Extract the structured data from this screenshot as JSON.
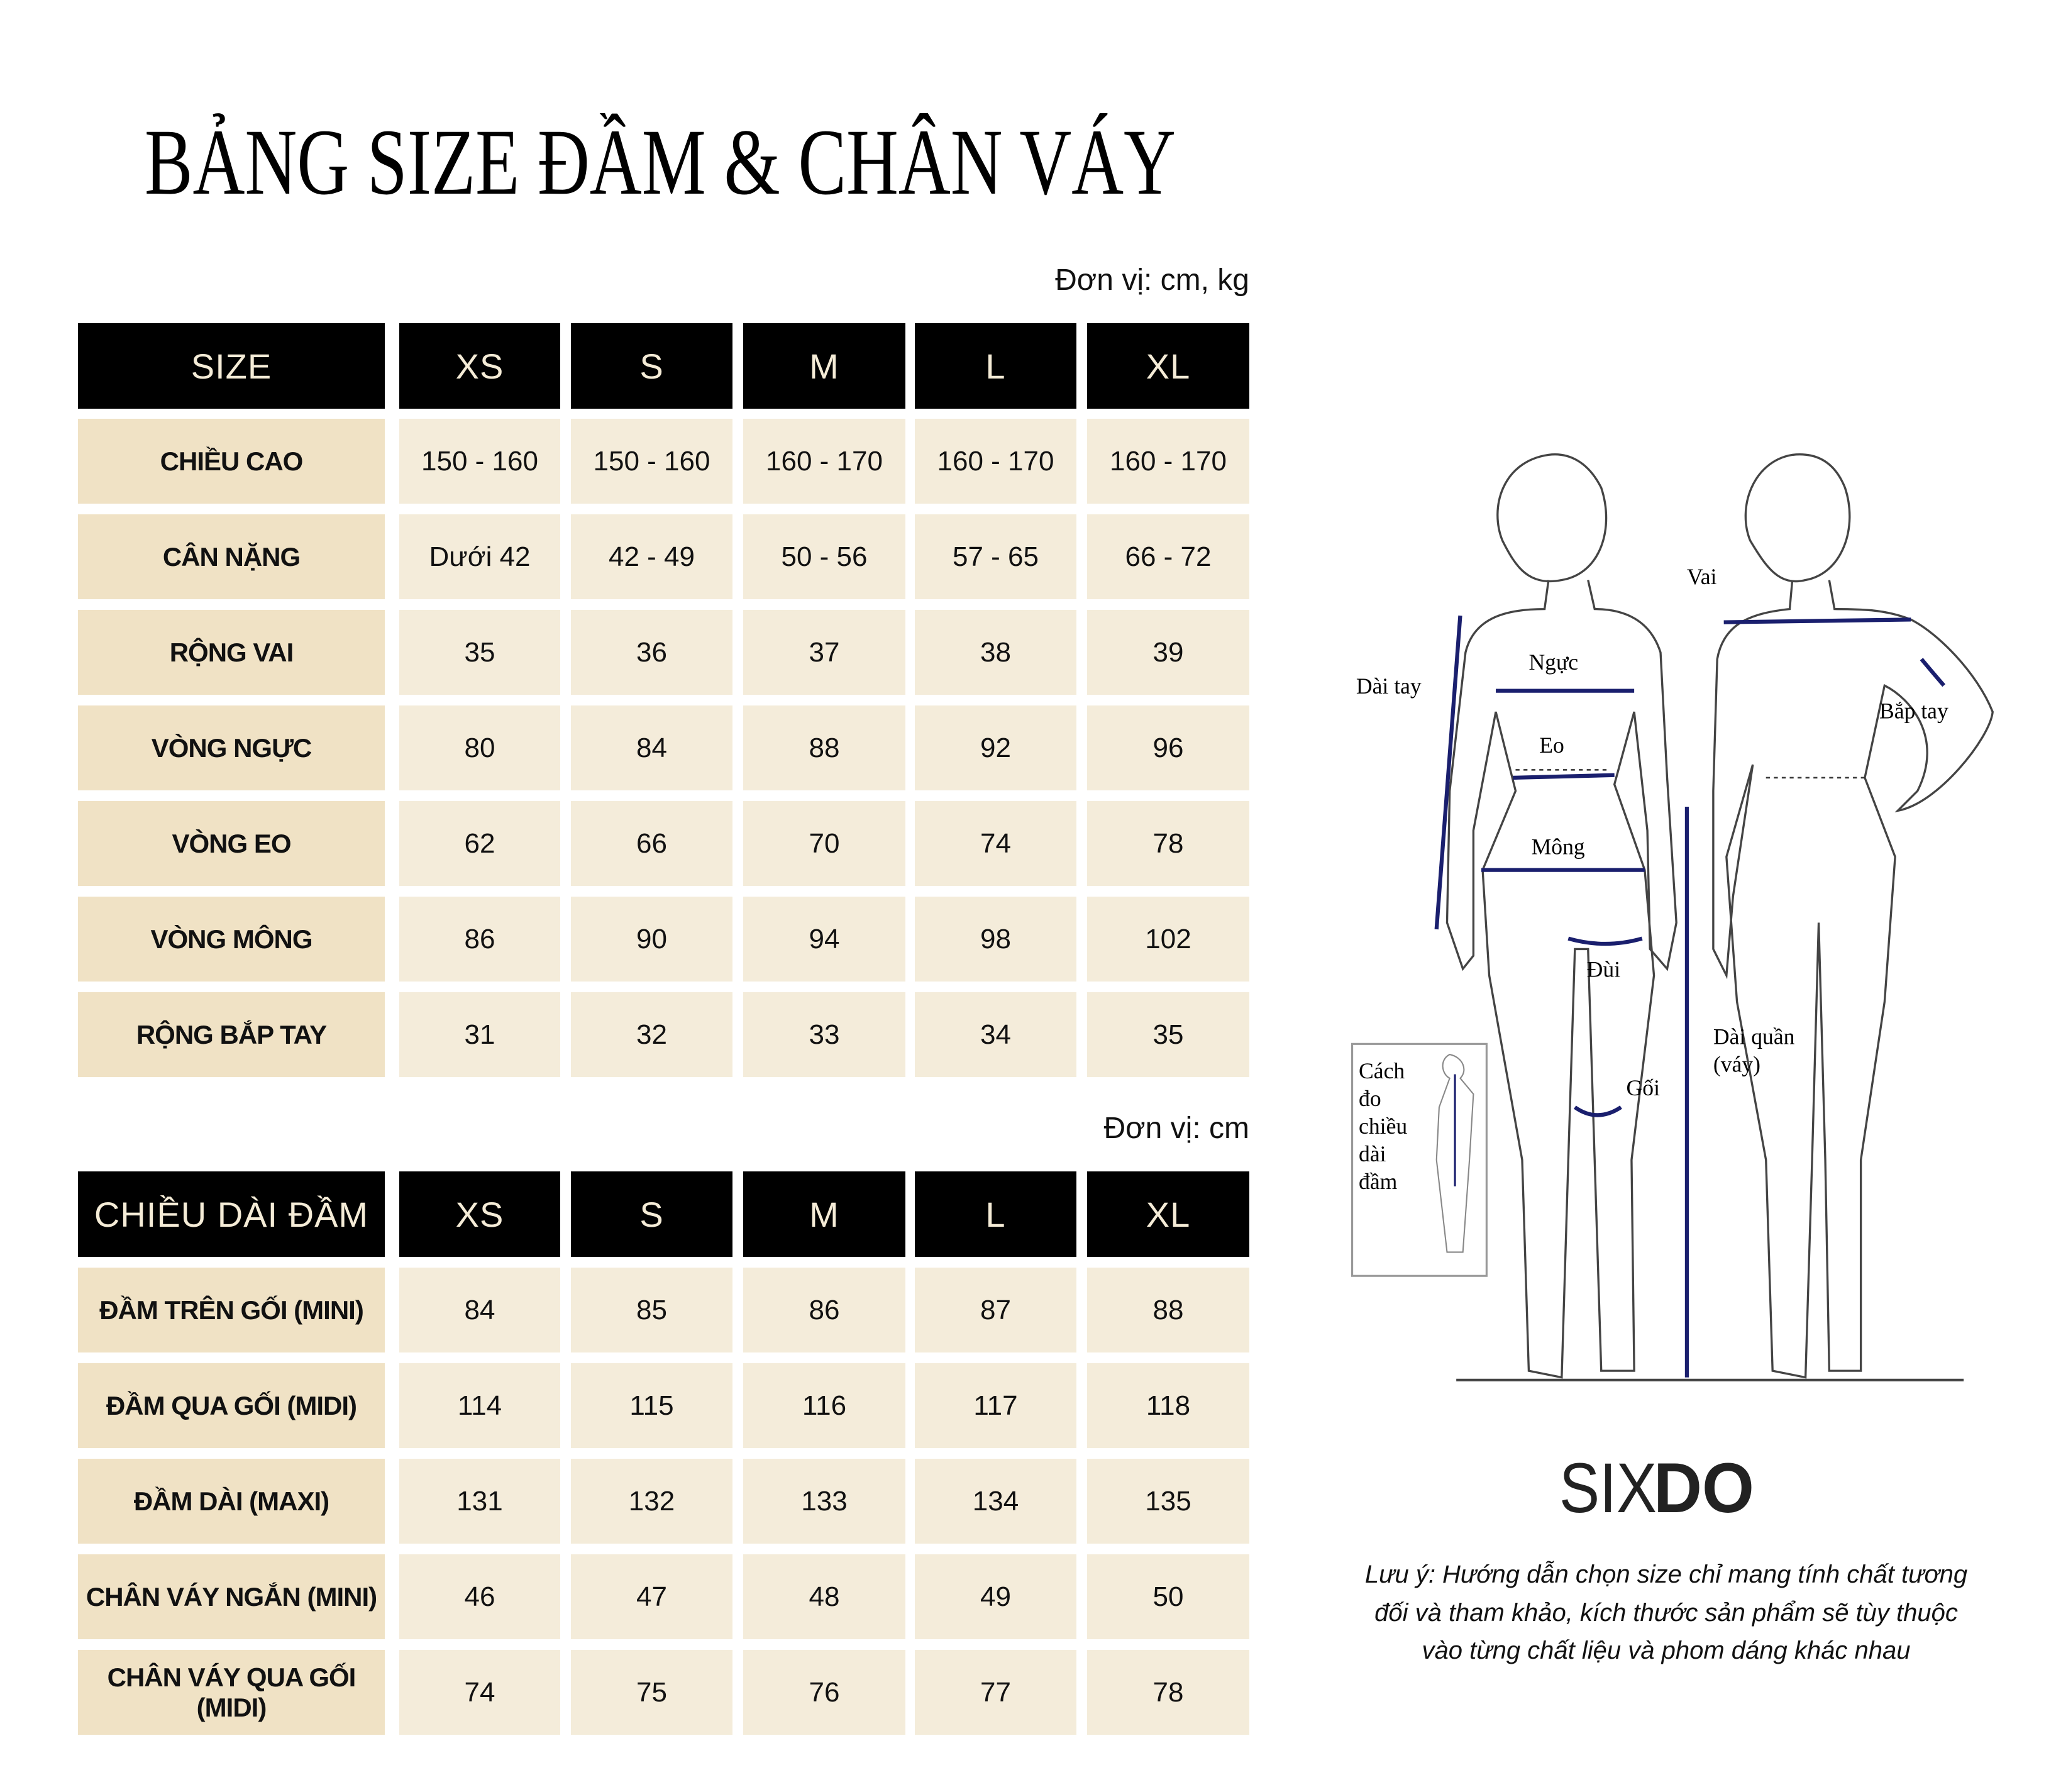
{
  "title": "BẢNG SIZE ĐẦM & CHÂN VÁY",
  "table1": {
    "unit": "Đơn vị: cm, kg",
    "headers": [
      "SIZE",
      "XS",
      "S",
      "M",
      "L",
      "XL"
    ],
    "rows": [
      {
        "label": "CHIỀU CAO",
        "values": [
          "150 - 160",
          "150 - 160",
          "160 - 170",
          "160 - 170",
          "160 - 170"
        ]
      },
      {
        "label": "CÂN NẶNG",
        "values": [
          "Dưới 42",
          "42 - 49",
          "50 - 56",
          "57 - 65",
          "66 - 72"
        ]
      },
      {
        "label": "RỘNG VAI",
        "values": [
          "35",
          "36",
          "37",
          "38",
          "39"
        ]
      },
      {
        "label": "VÒNG NGỰC",
        "values": [
          "80",
          "84",
          "88",
          "92",
          "96"
        ]
      },
      {
        "label": "VÒNG EO",
        "values": [
          "62",
          "66",
          "70",
          "74",
          "78"
        ]
      },
      {
        "label": "VÒNG MÔNG",
        "values": [
          "86",
          "90",
          "94",
          "98",
          "102"
        ]
      },
      {
        "label": "RỘNG BẮP TAY",
        "values": [
          "31",
          "32",
          "33",
          "34",
          "35"
        ]
      }
    ]
  },
  "table2": {
    "unit": "Đơn vị: cm",
    "headers": [
      "CHIỀU DÀI ĐẦM",
      "XS",
      "S",
      "M",
      "L",
      "XL"
    ],
    "rows": [
      {
        "label": "ĐẦM TRÊN GỐI (MINI)",
        "values": [
          "84",
          "85",
          "86",
          "87",
          "88"
        ]
      },
      {
        "label": "ĐẦM QUA GỐI (MIDI)",
        "values": [
          "114",
          "115",
          "116",
          "117",
          "118"
        ]
      },
      {
        "label": "ĐẦM DÀI (MAXI)",
        "values": [
          "131",
          "132",
          "133",
          "134",
          "135"
        ]
      },
      {
        "label": "CHÂN VÁY NGẮN (MINI)",
        "values": [
          "46",
          "47",
          "48",
          "49",
          "50"
        ]
      },
      {
        "label": "CHÂN VÁY QUA GỐI (MIDI)",
        "values": [
          "74",
          "75",
          "76",
          "77",
          "78"
        ]
      }
    ]
  },
  "figure": {
    "labels": {
      "vai": "Vai",
      "nguc": "Ngực",
      "dai_tay": "Dài tay",
      "bap_tay": "Bắp tay",
      "eo": "Eo",
      "mong": "Mông",
      "dui": "Đùi",
      "goi": "Gối",
      "dai_quan_1": "Dài quần",
      "dai_quan_2": "(váy)",
      "inset_1": "Cách",
      "inset_2": "đo",
      "inset_3": "chiều",
      "inset_4": "dài",
      "inset_5": "đầm"
    },
    "measure_color": "#1a1f6e"
  },
  "logo": "SIXDO",
  "note": [
    "Lưu ý: Hướng dẫn chọn size chỉ mang tính chất tương",
    "đối và tham khảo, kích thước sản phẩm sẽ tùy thuộc",
    "vào từng chất liệu và phom dáng khác nhau"
  ],
  "colors": {
    "header_bg": "#000000",
    "header_text": "#f5ecd7",
    "label_bg": "#f0e2c5",
    "value_bg": "#f4ecda"
  }
}
